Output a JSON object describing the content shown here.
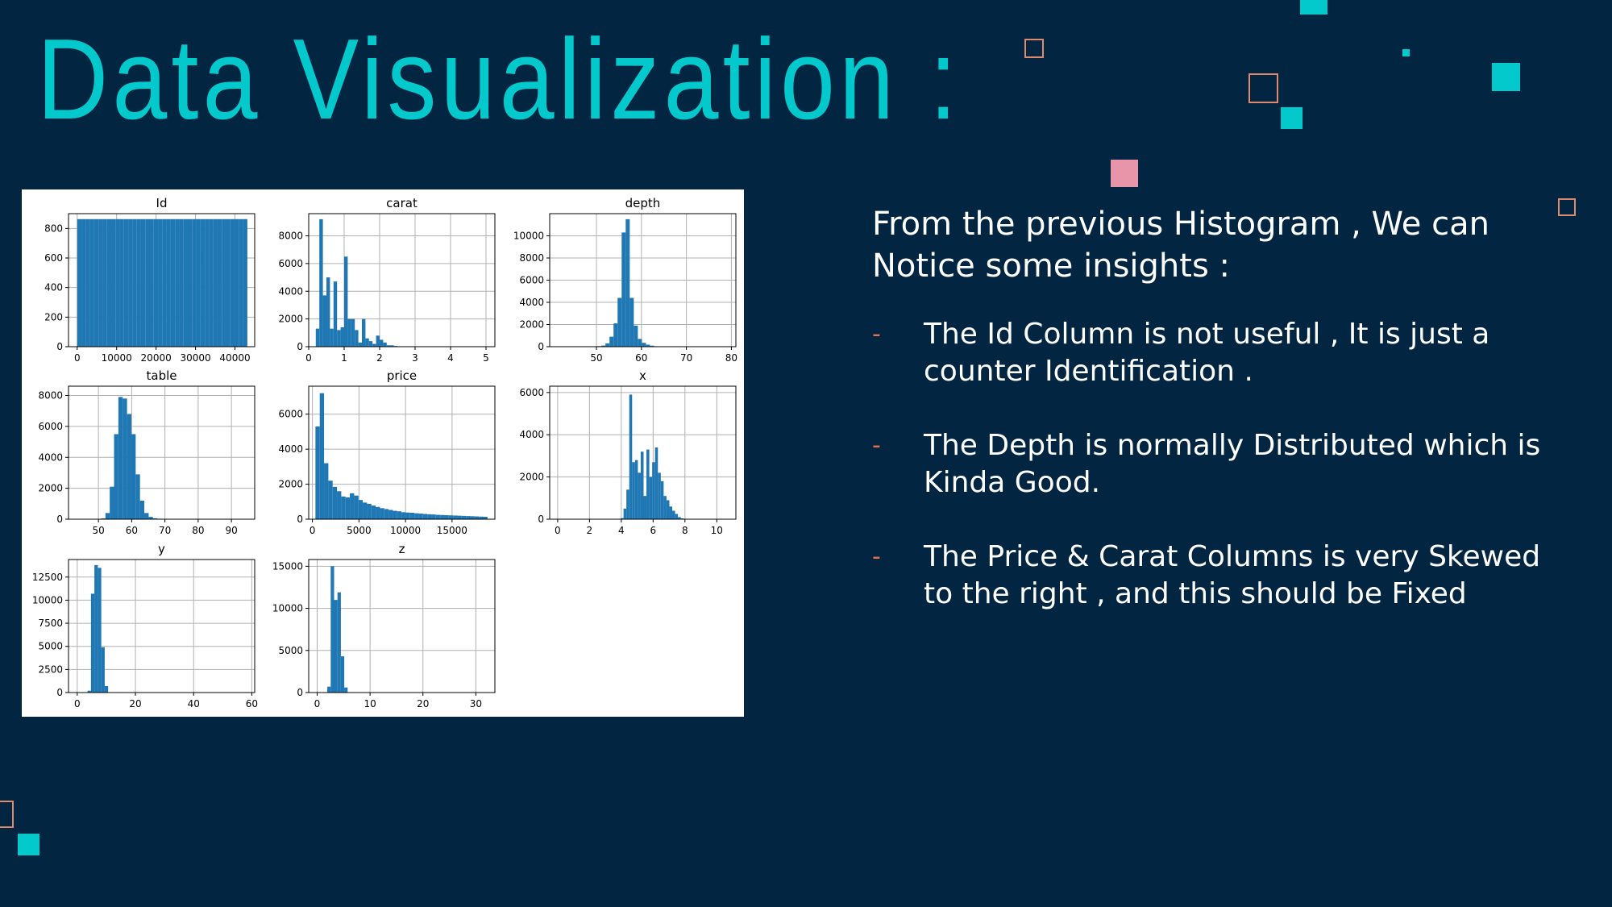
{
  "slide": {
    "title": "Data Visualization :",
    "colors": {
      "background": "#022542",
      "accent": "#03c8cc",
      "pink": "#e895aa",
      "outline": "#e08a6d",
      "bar": "#1f77b4"
    }
  },
  "insights": {
    "intro": "From the previous Histogram , We can Notice some insights :",
    "bullet_glyph": "-",
    "items": [
      "The Id Column is not useful , It  is just a counter Identification .",
      "The Depth is normally Distributed which is Kinda Good.",
      "The Price & Carat Columns is very Skewed to the right , and this should be Fixed"
    ]
  },
  "chart_data": [
    {
      "type": "bar",
      "title": "Id",
      "xlim": [
        -2200,
        45000
      ],
      "ylim": [
        0,
        900
      ],
      "xticks": [
        0,
        10000,
        20000,
        30000,
        40000
      ],
      "yticks": [
        0,
        200,
        400,
        600,
        800
      ],
      "bin_start": 0,
      "bin_width": 1078.5,
      "values": [
        863,
        863,
        863,
        863,
        863,
        863,
        863,
        863,
        863,
        863,
        863,
        863,
        863,
        863,
        863,
        863,
        863,
        863,
        863,
        863,
        863,
        863,
        863,
        863,
        863,
        863,
        863,
        863,
        863,
        863,
        863,
        863,
        863,
        863,
        863,
        863,
        863,
        863,
        863,
        863
      ]
    },
    {
      "type": "bar",
      "title": "carat",
      "xlim": [
        0,
        5.25
      ],
      "ylim": [
        0,
        9600
      ],
      "xticks": [
        0,
        1,
        2,
        3,
        4,
        5
      ],
      "yticks": [
        0,
        2000,
        4000,
        6000,
        8000
      ],
      "bin_start": 0.2,
      "bin_width": 0.1,
      "values": [
        1300,
        9200,
        3700,
        5000,
        1300,
        4700,
        1200,
        1400,
        6500,
        2000,
        2000,
        1200,
        300,
        2000,
        600,
        400,
        200,
        800,
        500,
        300,
        100,
        100,
        50,
        30,
        20,
        10,
        8,
        5,
        3,
        2,
        1,
        1,
        1,
        0,
        0,
        0,
        0,
        0,
        1,
        0,
        0,
        0,
        0,
        0,
        0,
        0,
        0,
        1
      ]
    },
    {
      "type": "bar",
      "title": "depth",
      "xlim": [
        39.6,
        81
      ],
      "ylim": [
        0,
        12000
      ],
      "xticks": [
        50,
        60,
        70,
        80
      ],
      "yticks": [
        0,
        2000,
        4000,
        6000,
        8000,
        10000
      ],
      "bin_start": 43,
      "bin_width": 0.9,
      "values": [
        2,
        2,
        3,
        3,
        4,
        5,
        10,
        20,
        50,
        100,
        300,
        900,
        2100,
        4400,
        10300,
        11500,
        4400,
        1900,
        700,
        350,
        180,
        90,
        40,
        20,
        12,
        8,
        5,
        3,
        2,
        2,
        1,
        1,
        1,
        1,
        1,
        1,
        1,
        1,
        1,
        1
      ]
    },
    {
      "type": "bar",
      "title": "table",
      "xlim": [
        41,
        97
      ],
      "ylim": [
        0,
        8600
      ],
      "xticks": [
        50,
        60,
        70,
        80,
        90
      ],
      "yticks": [
        0,
        2000,
        4000,
        6000,
        8000
      ],
      "bin_start": 43,
      "bin_width": 1.3,
      "values": [
        1,
        1,
        1,
        2,
        3,
        10,
        50,
        400,
        2100,
        5500,
        7900,
        7800,
        6800,
        5500,
        2900,
        1200,
        400,
        150,
        60,
        30,
        15,
        8,
        5,
        3,
        2,
        1,
        1,
        1,
        1,
        1,
        1,
        1,
        1,
        1,
        1,
        1,
        1,
        1,
        1,
        1
      ]
    },
    {
      "type": "bar",
      "title": "price",
      "xlim": [
        -400,
        19600
      ],
      "ylim": [
        0,
        7600
      ],
      "xticks": [
        0,
        5000,
        10000,
        15000
      ],
      "yticks": [
        0,
        2000,
        4000,
        6000
      ],
      "bin_start": 326,
      "bin_width": 462,
      "values": [
        5300,
        7200,
        3200,
        2200,
        1850,
        1600,
        1300,
        1250,
        1480,
        1350,
        1100,
        950,
        880,
        780,
        700,
        630,
        580,
        530,
        480,
        450,
        400,
        380,
        370,
        340,
        320,
        300,
        280,
        270,
        250,
        240,
        230,
        220,
        210,
        200,
        190,
        180,
        170,
        160,
        150,
        140
      ]
    },
    {
      "type": "bar",
      "title": "x",
      "xlim": [
        -0.5,
        11.2
      ],
      "ylim": [
        0,
        6300
      ],
      "xticks": [
        0,
        2,
        4,
        6,
        8,
        10
      ],
      "yticks": [
        0,
        2000,
        4000,
        6000
      ],
      "bin_start": 0,
      "bin_width": 0.18,
      "values": [
        5,
        0,
        0,
        0,
        0,
        0,
        0,
        0,
        0,
        0,
        0,
        0,
        0,
        0,
        0,
        0,
        0,
        0,
        0,
        0,
        0,
        0,
        50,
        500,
        1400,
        5900,
        2700,
        2800,
        2200,
        3200,
        1100,
        3300,
        2000,
        2700,
        3400,
        2200,
        1800,
        1100,
        900,
        600,
        400,
        250,
        100,
        40,
        15,
        8,
        5,
        3,
        2,
        1,
        1,
        1,
        1,
        1,
        1,
        1,
        1,
        1,
        1,
        1
      ]
    },
    {
      "type": "bar",
      "title": "y",
      "xlim": [
        -3,
        61
      ],
      "ylim": [
        0,
        14400
      ],
      "xticks": [
        0,
        20,
        40,
        60
      ],
      "yticks": [
        0,
        2500,
        5000,
        7500,
        10000,
        12500
      ],
      "bin_start": 0,
      "bin_width": 1.18,
      "values": [
        0,
        0,
        5,
        200,
        10700,
        13800,
        13500,
        4900,
        700,
        10,
        2,
        1,
        0,
        0,
        0,
        0,
        0,
        0,
        0,
        0,
        0,
        0,
        0,
        0,
        1,
        0,
        0,
        0,
        0,
        0,
        0,
        0,
        0,
        0,
        0,
        0,
        0,
        0,
        0,
        0,
        0,
        0,
        0,
        0,
        0,
        0,
        0,
        0,
        0,
        0
      ]
    },
    {
      "type": "bar",
      "title": "z",
      "xlim": [
        -1.6,
        33.6
      ],
      "ylim": [
        0,
        15800
      ],
      "xticks": [
        0,
        10,
        20,
        30
      ],
      "yticks": [
        0,
        5000,
        10000,
        15000
      ],
      "bin_start": 0,
      "bin_width": 0.64,
      "values": [
        0,
        0,
        5,
        700,
        15000,
        11000,
        11900,
        4300,
        600,
        5,
        1,
        0,
        0,
        0,
        0,
        0,
        0,
        0,
        0,
        0,
        0,
        0,
        0,
        0,
        0,
        0,
        0,
        0,
        0,
        0,
        0,
        0,
        0,
        0,
        0,
        0,
        0,
        0,
        0,
        0,
        0,
        0,
        0,
        0,
        0,
        0,
        0,
        0,
        0,
        1
      ]
    }
  ]
}
